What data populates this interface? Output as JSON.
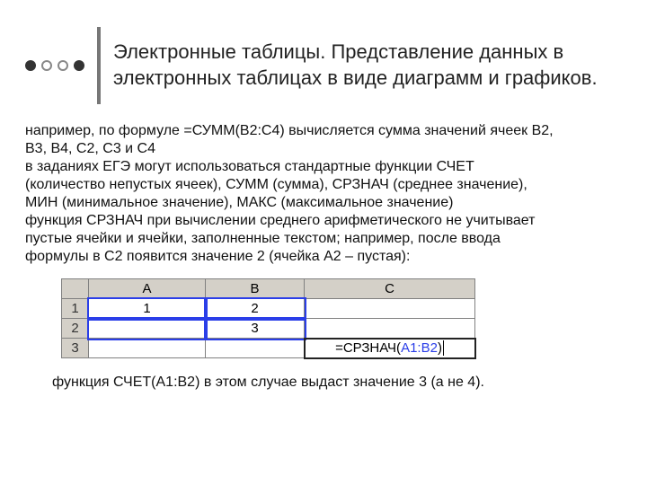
{
  "header": {
    "bullets_bg": [
      "#333333",
      "#c9c9c9",
      "#dedede",
      "#333333"
    ],
    "title": "Электронные таблицы. Представление данных в электронных таблицах в виде диаграмм и графиков."
  },
  "paragraph": {
    "l1": "например, по формуле =СУММ(В2:С4) вычисляется сумма значений ячеек В2,",
    "l2": "В3, В4, С2, С3 и С4",
    "l3": "в заданиях ЕГЭ могут использоваться стандартные функции СЧЕТ",
    "l4": "(количество непустых ячеек), СУММ (сумма), СРЗНАЧ (среднее значение),",
    "l5": "МИН (минимальное значение),  МАКС (максимальное значение)",
    "l6": "функция СРЗНАЧ при вычислении среднего арифметического не учитывает",
    "l7": "пустые ячейки и ячейки, заполненные текстом; например, после ввода",
    "l8": "формулы в С2 появится значение 2 (ячейка А2 – пустая):"
  },
  "sheet": {
    "columns": [
      "A",
      "B",
      "C"
    ],
    "row_ids": [
      "1",
      "2",
      "3"
    ],
    "A1": "1",
    "B1": "2",
    "A2": "",
    "B2": "3",
    "formula_prefix": "=СРЗНАЧ(",
    "formula_range": "A1:B2",
    "formula_suffix": ")",
    "header_bg": "#d4d0c8",
    "grid_border": "#808080",
    "range_outline": "#2a3ee8"
  },
  "footnote": "функция СЧЕТ(A1:B2) в этом случае выдаст значение 3 (а не 4)."
}
